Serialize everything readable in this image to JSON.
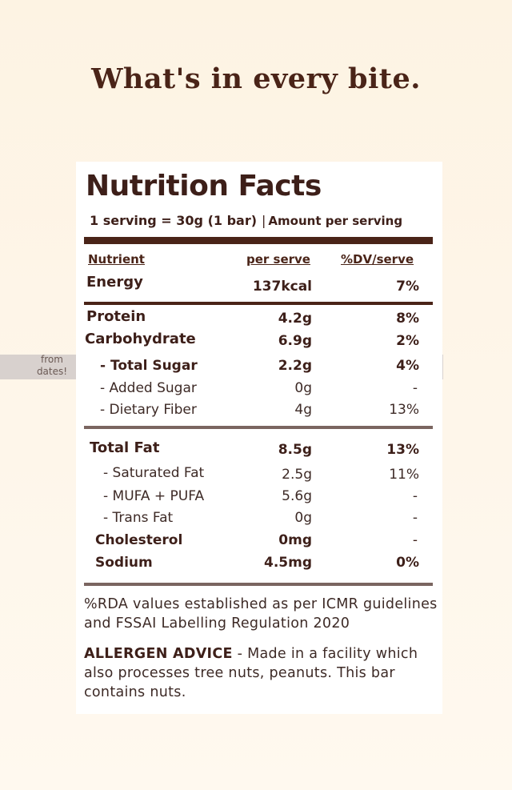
{
  "headline": "What's in every bite.",
  "panel": {
    "title": "Nutrition Facts",
    "serving": "1 serving = 30g (1 bar)",
    "separator": "|",
    "amount_per_serving": "Amount per serving",
    "columns": {
      "nutrient": "Nutrient",
      "per_serve": "per serve",
      "dv": "%DV/serve"
    },
    "rows": [
      {
        "label": "Energy",
        "value": "137kcal",
        "dv": "7%"
      },
      {
        "label": "Protein",
        "value": "4.2g",
        "dv": "8%"
      },
      {
        "label": "Carbohydrate",
        "value": "6.9g",
        "dv": "2%"
      },
      {
        "label": "- Total Sugar",
        "value": "2.2g",
        "dv": "4%"
      },
      {
        "label": "- Added Sugar",
        "value": "0g",
        "dv": "-"
      },
      {
        "label": "- Dietary Fiber",
        "value": "4g",
        "dv": "13%"
      },
      {
        "label": "Total Fat",
        "value": "8.5g",
        "dv": "13%"
      },
      {
        "label": "- Saturated Fat",
        "value": "2.5g",
        "dv": "11%"
      },
      {
        "label": "- MUFA + PUFA",
        "value": "5.6g",
        "dv": "-"
      },
      {
        "label": "- Trans Fat",
        "value": "0g",
        "dv": "-"
      },
      {
        "label": "Cholesterol",
        "value": "0mg",
        "dv": "-"
      },
      {
        "label": "Sodium",
        "value": "4.5mg",
        "dv": "0%"
      }
    ],
    "sugar_note": "from dates!",
    "rda_note": "%RDA values established as per ICMR guidelines and FSSAI Labelling Regulation 2020",
    "allergen_label": "ALLERGEN ADVICE",
    "allergen_text": " - Made in a facility which also processes tree nuts, peanuts. This bar contains nuts."
  },
  "colors": {
    "accent": "#4a2418",
    "highlight": "#d8d1ce",
    "background": "#fdf3e3"
  }
}
